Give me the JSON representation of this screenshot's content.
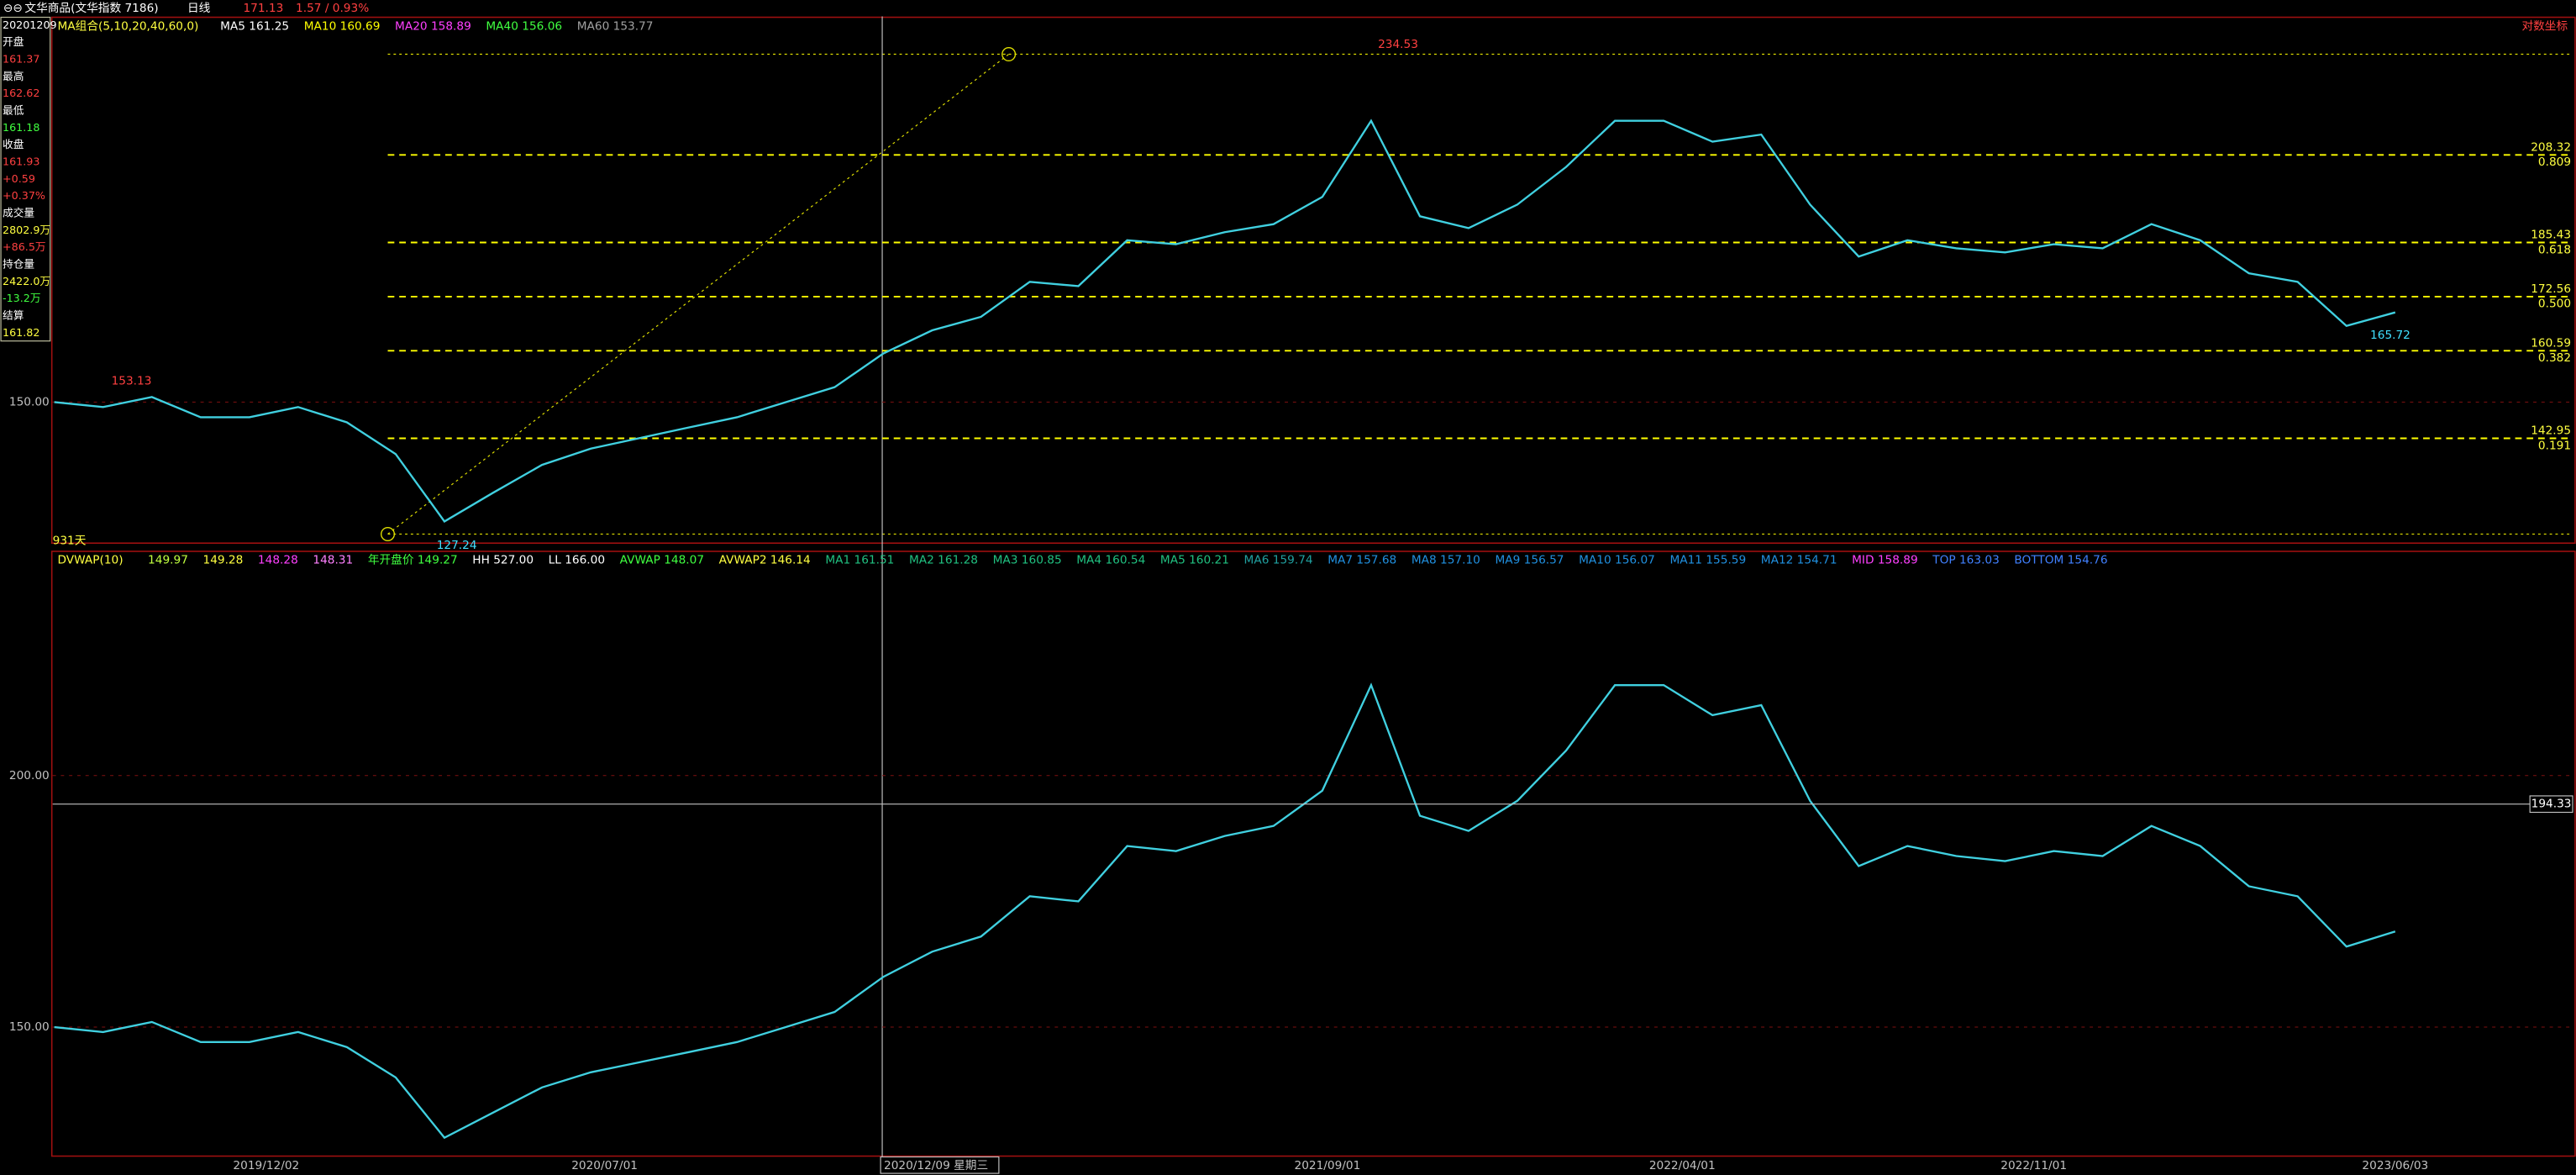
{
  "toolbar": {
    "symbol": "文华商品(文华指数 7186)",
    "period": "日线",
    "last": "171.13",
    "change": "1.57 / 0.93%"
  },
  "info_panel": [
    {
      "text": "20201209",
      "color": "#ffffff"
    },
    {
      "text": "开盘",
      "color": "#ffffff"
    },
    {
      "text": "161.37",
      "color": "#ff4040"
    },
    {
      "text": "最高",
      "color": "#ffffff"
    },
    {
      "text": "162.62",
      "color": "#ff4040"
    },
    {
      "text": "最低",
      "color": "#ffffff"
    },
    {
      "text": "161.18",
      "color": "#40ff40"
    },
    {
      "text": "收盘",
      "color": "#ffffff"
    },
    {
      "text": "161.93",
      "color": "#ff4040"
    },
    {
      "text": "+0.59",
      "color": "#ff4040"
    },
    {
      "text": "+0.37%",
      "color": "#ff4040"
    },
    {
      "text": "成交量",
      "color": "#ffffff"
    },
    {
      "text": "2802.9万",
      "color": "#ffff40"
    },
    {
      "text": "+86.5万",
      "color": "#ff4040"
    },
    {
      "text": "持仓量",
      "color": "#ffffff"
    },
    {
      "text": "2422.0万",
      "color": "#ffff40"
    },
    {
      "text": "-13.2万",
      "color": "#40ff40"
    },
    {
      "text": "结算",
      "color": "#ffffff"
    },
    {
      "text": "161.82",
      "color": "#ffff40"
    }
  ],
  "chart_data": [
    {
      "type": "line",
      "log_scale": true,
      "legend_title": "MA组合(5,10,20,40,60,0)",
      "legend": [
        {
          "text": "MA5 161.25",
          "color": "#ffffff"
        },
        {
          "text": "MA10 160.69",
          "color": "#ffff00"
        },
        {
          "text": "MA20 158.89",
          "color": "#ff40ff"
        },
        {
          "text": "MA40 156.06",
          "color": "#40ff40"
        },
        {
          "text": "MA60 153.77",
          "color": "#a0a0a0"
        }
      ],
      "corner_label": "对数坐标",
      "ylim": [
        124.5,
        250.4
      ],
      "yticks": [
        {
          "value": 150,
          "label": "150.00"
        }
      ],
      "fib_levels": [
        {
          "value": 208.32,
          "ratio": "0.809"
        },
        {
          "value": 185.43,
          "ratio": "0.618"
        },
        {
          "value": 172.56,
          "ratio": "0.500"
        },
        {
          "value": 160.59,
          "ratio": "0.382"
        },
        {
          "value": 142.95,
          "ratio": "0.191"
        }
      ],
      "annotations": [
        {
          "text": "234.53",
          "color": "#ff4040"
        },
        {
          "text": "153.13",
          "color": "#ff4040"
        },
        {
          "text": "127.24",
          "color": "#40e0ff"
        },
        {
          "text": "165.72",
          "color": "#40e0ff"
        },
        {
          "text": "931天",
          "color": "#ffff40"
        }
      ],
      "series": [
        {
          "color": "#40d0e0",
          "values": [
            150,
            149,
            151,
            147,
            147,
            149,
            146,
            140,
            128,
            133,
            138,
            141,
            143,
            145,
            147,
            150,
            153,
            160,
            165,
            168,
            176,
            175,
            186,
            185,
            188,
            190,
            197,
            218,
            192,
            189,
            195,
            205,
            218,
            218,
            212,
            214,
            195,
            182,
            186,
            184,
            183,
            185,
            184,
            190,
            186,
            178,
            176,
            166,
            169
          ]
        }
      ]
    },
    {
      "type": "line",
      "legend_title": "DVWAP(10)",
      "legend": [
        {
          "text": "149.97",
          "color": "#c0ff40"
        },
        {
          "text": "149.28",
          "color": "#ffff40"
        },
        {
          "text": "148.28",
          "color": "#ff40ff"
        },
        {
          "text": "148.31",
          "color": "#ff80ff"
        },
        {
          "text": "年开盘价 149.27",
          "color": "#40ff40"
        },
        {
          "text": "HH 527.00",
          "color": "#ffffff"
        },
        {
          "text": "LL 166.00",
          "color": "#ffffff"
        },
        {
          "text": "AVWAP 148.07",
          "color": "#40ff40"
        },
        {
          "text": "AVWAP2 146.14",
          "color": "#ffff40"
        },
        {
          "text": "MA1 161.51",
          "color": "#20c080"
        },
        {
          "text": "MA2 161.28",
          "color": "#20c080"
        },
        {
          "text": "MA3 160.85",
          "color": "#20c080"
        },
        {
          "text": "MA4 160.54",
          "color": "#20c080"
        },
        {
          "text": "MA5 160.21",
          "color": "#20c080"
        },
        {
          "text": "MA6 159.74",
          "color": "#20a0a0"
        },
        {
          "text": "MA7 157.68",
          "color": "#2090e0"
        },
        {
          "text": "MA8 157.10",
          "color": "#2090e0"
        },
        {
          "text": "MA9 156.57",
          "color": "#2090e0"
        },
        {
          "text": "MA10 156.07",
          "color": "#2090e0"
        },
        {
          "text": "MA11 155.59",
          "color": "#2090e0"
        },
        {
          "text": "MA12 154.71",
          "color": "#2090e0"
        },
        {
          "text": "MID 158.89",
          "color": "#ff40ff"
        },
        {
          "text": "TOP 163.03",
          "color": "#4080ff"
        },
        {
          "text": "BOTTOM 154.76",
          "color": "#4080ff"
        }
      ],
      "ylim": [
        124.5,
        244.1
      ],
      "yticks": [
        {
          "value": 200,
          "label": "200.00"
        },
        {
          "value": 150,
          "label": "150.00"
        }
      ],
      "cursor": 194.33,
      "x_labels": [
        "2019/12/02",
        "2020/07/01",
        "2020/12/09 星期三",
        "2021/09/01",
        "2022/04/01",
        "2022/11/01",
        "2023/06/03"
      ]
    }
  ]
}
